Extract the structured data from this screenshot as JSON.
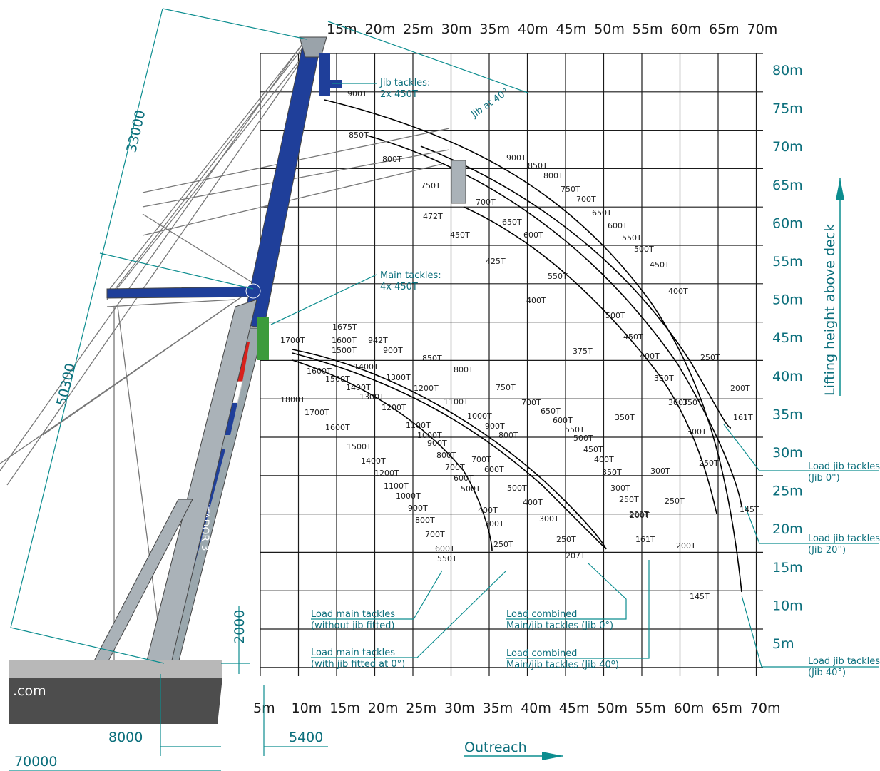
{
  "top_x_labels": [
    "15m",
    "20m",
    "25m",
    "30m",
    "35m",
    "40m",
    "45m",
    "50m",
    "55m",
    "60m",
    "65m",
    "70m"
  ],
  "bottom_x_labels": [
    "5m",
    "10m",
    "15m",
    "20m",
    "25m",
    "30m",
    "35m",
    "40m",
    "45m",
    "50m",
    "55m",
    "60m",
    "65m",
    "70m"
  ],
  "y_labels": [
    "80m",
    "75m",
    "70m",
    "65m",
    "60m",
    "55m",
    "50m",
    "45m",
    "40m",
    "35m",
    "30m",
    "25m",
    "20m",
    "15m",
    "10m",
    "5m"
  ],
  "axis_titles": {
    "y": "Lifting height above deck",
    "x": "Outreach"
  },
  "dimensions": {
    "boom_length": "33000",
    "mast_length": "50300",
    "base_height": "2000",
    "offset_8000": "8000",
    "offset_5400": "5400",
    "overall_70000": "70000"
  },
  "jib_angle_label": "Jib at 40°",
  "callouts": {
    "jib_tackles": [
      "Jib tackles:",
      "2x 450T"
    ],
    "main_tackles": [
      "Main tackles:",
      "4x 450T"
    ],
    "load_main_no_jib": [
      "Load main tackles",
      "(without jib fitted)"
    ],
    "load_main_jib0": [
      "Load main tackles",
      "(with jib fitted at 0°)"
    ],
    "load_comb_0": [
      "Load combined",
      "Main/jib tackles (Jib 0°)"
    ],
    "load_comb_40": [
      "Load combined",
      "Main/jib tackles (Jib 40º)"
    ],
    "load_jib_0": [
      "Load jib tackles",
      "(Jib 0°)"
    ],
    "load_jib_20": [
      "Load jib tackles",
      "(Jib 20°)"
    ],
    "load_jib_40": [
      "Load jib tackles",
      "(Jib 40°)"
    ]
  },
  "ship_text": ".com",
  "mast_text": "MATADOR 3",
  "load_labels": [
    "900T",
    "850T",
    "800T",
    "750T",
    "472T",
    "450T",
    "425T",
    "700T",
    "650T",
    "600T",
    "900T",
    "850T",
    "800T",
    "750T",
    "700T",
    "650T",
    "600T",
    "550T",
    "500T",
    "450T",
    "400T",
    "550T",
    "400T",
    "500T",
    "450T",
    "375T",
    "400T",
    "350T",
    "350T",
    "300T",
    "350T",
    "300T",
    "250T",
    "250T",
    "200T",
    "200T",
    "300T",
    "161T",
    "250T",
    "200T",
    "145T",
    "145T",
    "1700T",
    "1675T",
    "1600T",
    "1500T",
    "942T",
    "900T",
    "850T",
    "800T",
    "1400T",
    "1600T",
    "1500T",
    "1300T",
    "1200T",
    "1800T",
    "1400T",
    "1300T",
    "1700T",
    "1200T",
    "1600T",
    "1100T",
    "1500T",
    "1000T",
    "900T",
    "1400T",
    "1100T",
    "1000T",
    "1200T",
    "900T",
    "1100T",
    "800T",
    "1000T",
    "700T",
    "900T",
    "600T",
    "800T",
    "500T",
    "700T",
    "400T",
    "600T",
    "300T",
    "550T",
    "250T",
    "750T",
    "700T",
    "650T",
    "600T",
    "550T",
    "500T",
    "450T",
    "400T",
    "350T",
    "300T",
    "250T",
    "200T",
    "161T",
    "207T",
    "250T",
    "300T",
    "400T",
    "500T",
    "600T",
    "700T",
    "800T"
  ]
}
